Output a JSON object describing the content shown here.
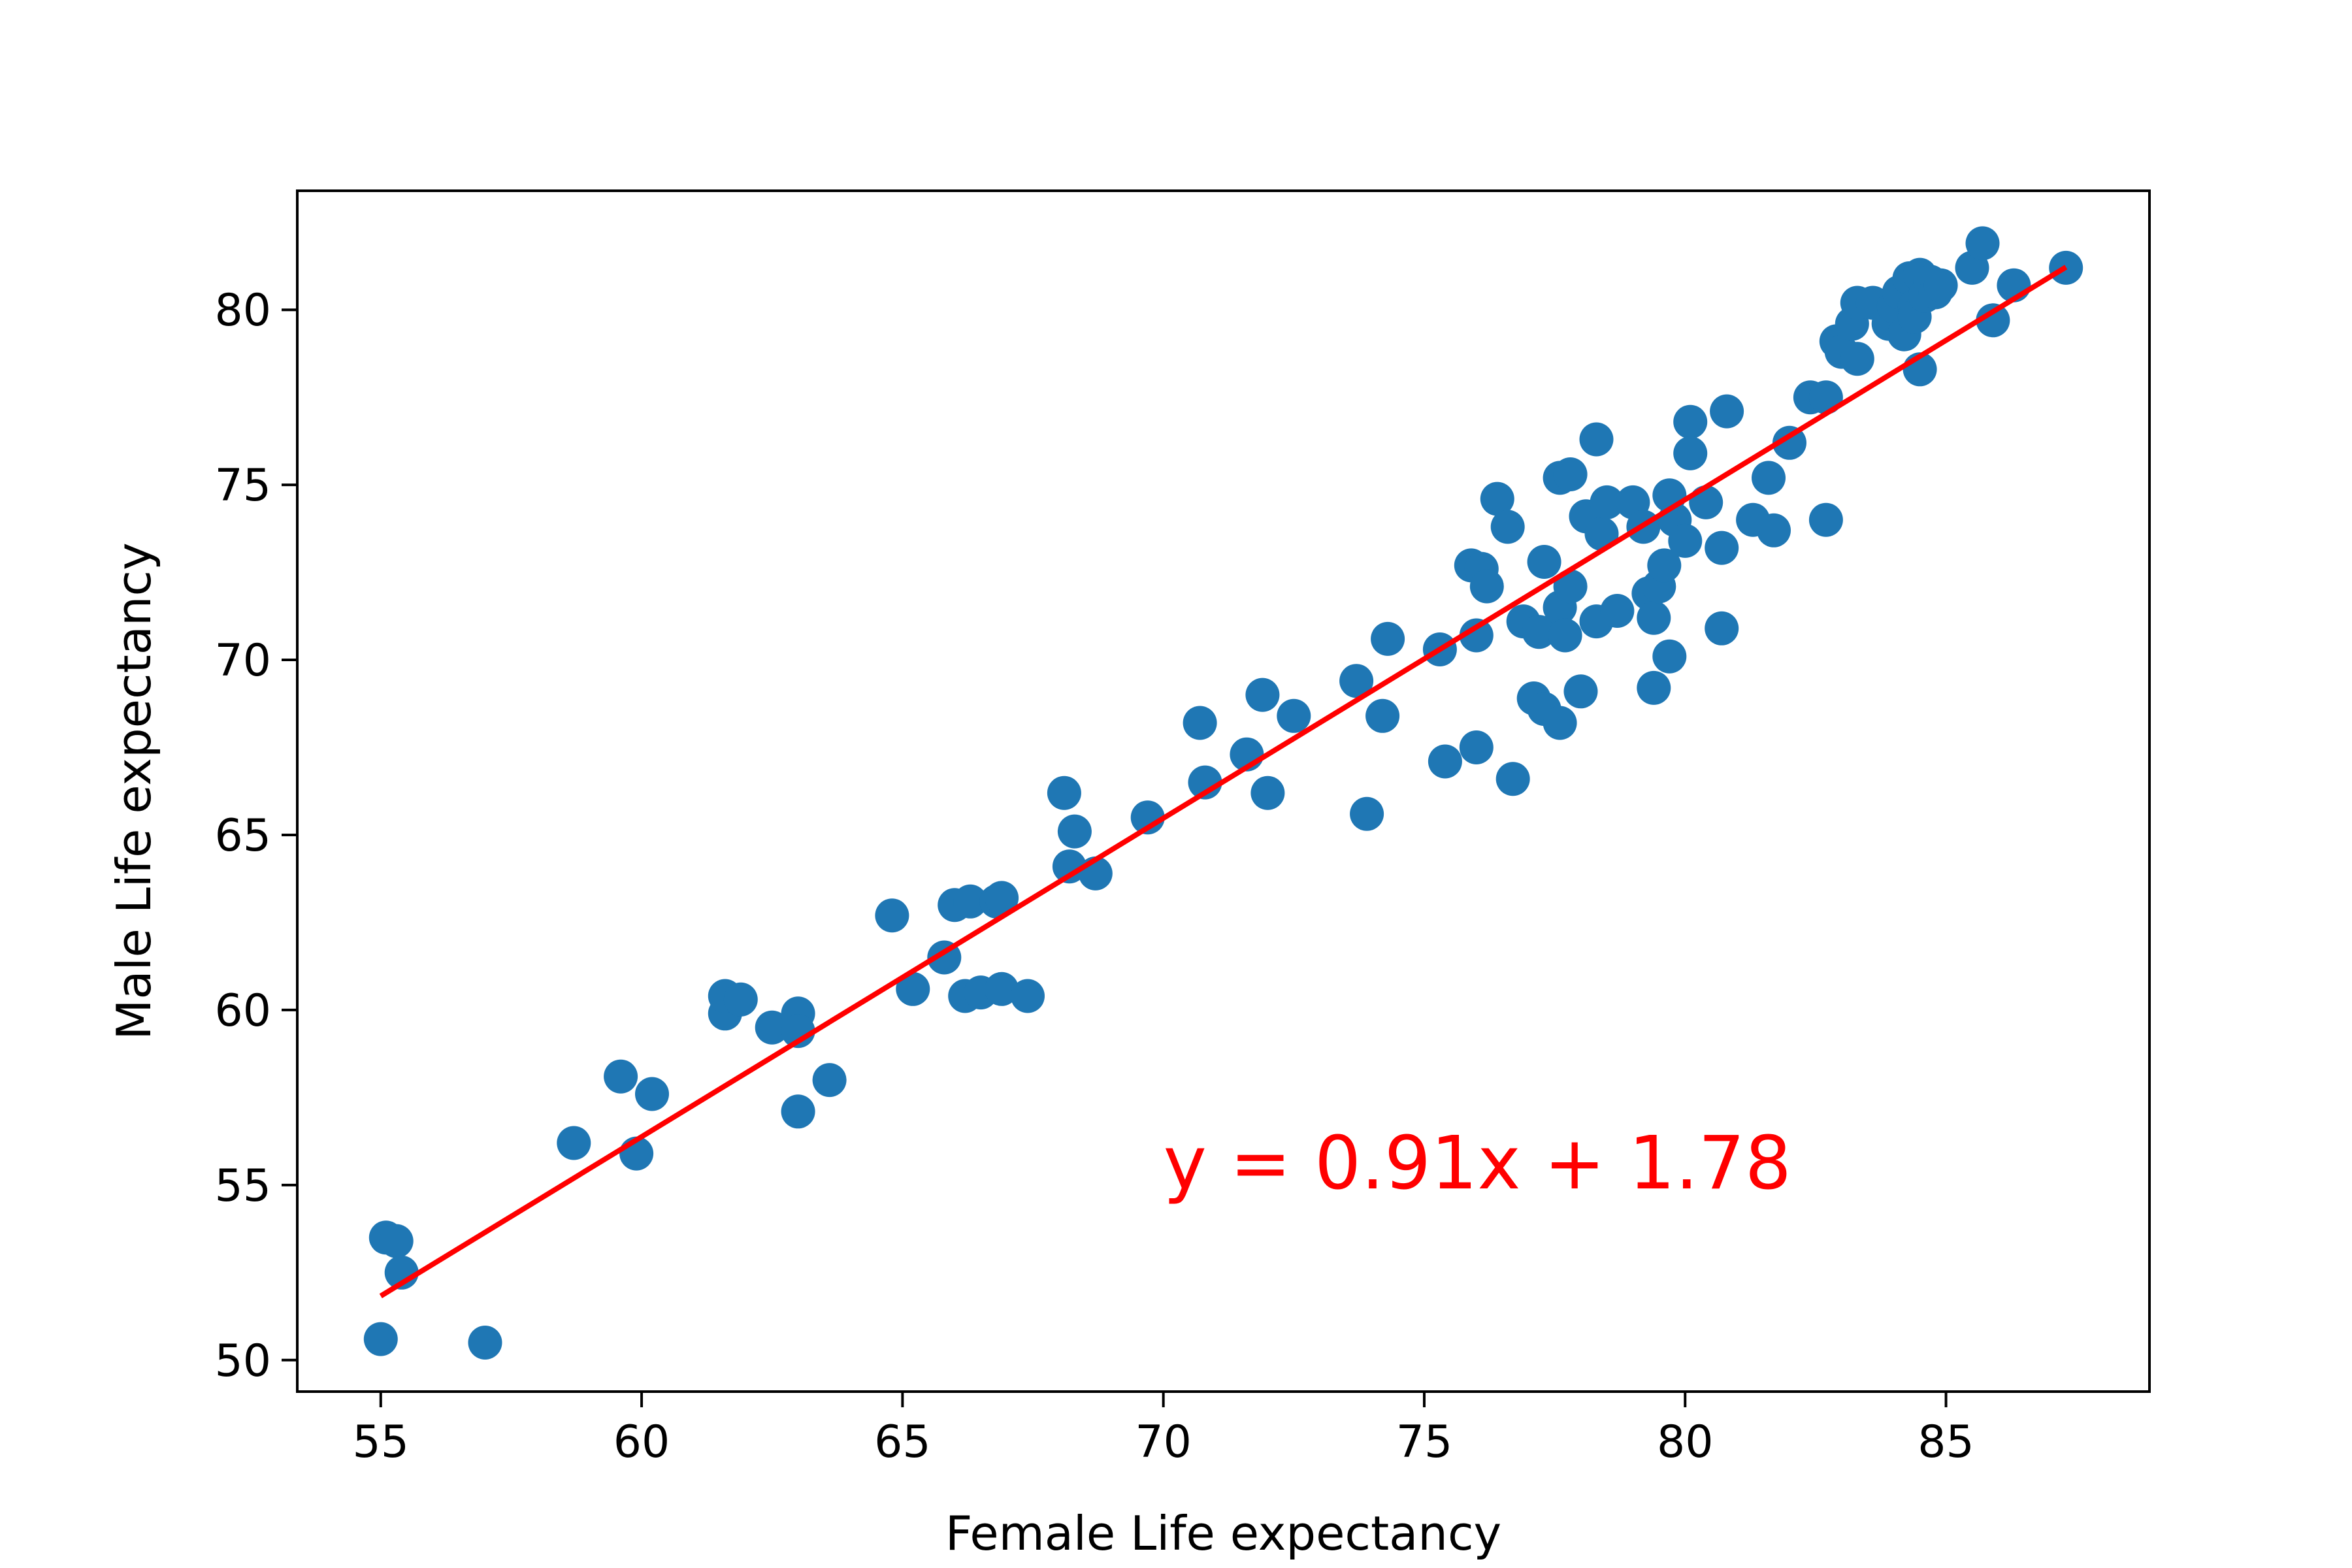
{
  "chart_data": {
    "type": "scatter",
    "xlabel": "Female Life expectancy",
    "ylabel": "Male Life expectancy",
    "xlim": [
      53.4,
      88.9
    ],
    "ylim": [
      49.1,
      83.4
    ],
    "xticks": [
      55,
      60,
      65,
      70,
      75,
      80,
      85
    ],
    "yticks": [
      50,
      55,
      60,
      65,
      70,
      75,
      80
    ],
    "grid": false,
    "point_color": "#1f77b4",
    "points": [
      [
        55.0,
        50.6
      ],
      [
        57.0,
        50.5
      ],
      [
        55.1,
        53.5
      ],
      [
        55.3,
        53.4
      ],
      [
        55.4,
        52.5
      ],
      [
        58.7,
        56.2
      ],
      [
        59.6,
        58.1
      ],
      [
        59.9,
        55.9
      ],
      [
        60.2,
        57.6
      ],
      [
        61.6,
        59.9
      ],
      [
        61.6,
        60.4
      ],
      [
        61.9,
        60.3
      ],
      [
        62.5,
        59.5
      ],
      [
        63.0,
        59.9
      ],
      [
        63.0,
        59.4
      ],
      [
        63.0,
        57.1
      ],
      [
        63.6,
        58.0
      ],
      [
        64.8,
        62.7
      ],
      [
        65.2,
        60.6
      ],
      [
        65.8,
        61.5
      ],
      [
        66.0,
        63.0
      ],
      [
        66.3,
        63.1
      ],
      [
        66.2,
        60.4
      ],
      [
        66.5,
        60.5
      ],
      [
        66.8,
        63.1
      ],
      [
        66.9,
        63.2
      ],
      [
        66.9,
        60.6
      ],
      [
        67.4,
        60.4
      ],
      [
        68.1,
        66.2
      ],
      [
        68.3,
        65.1
      ],
      [
        68.2,
        64.1
      ],
      [
        68.7,
        63.9
      ],
      [
        69.7,
        65.5
      ],
      [
        70.7,
        68.2
      ],
      [
        70.8,
        66.5
      ],
      [
        71.6,
        67.3
      ],
      [
        71.9,
        69.0
      ],
      [
        72.0,
        66.2
      ],
      [
        72.5,
        68.4
      ],
      [
        73.7,
        69.4
      ],
      [
        73.9,
        65.6
      ],
      [
        74.2,
        68.4
      ],
      [
        74.3,
        70.6
      ],
      [
        75.3,
        70.3
      ],
      [
        75.4,
        67.1
      ],
      [
        75.9,
        72.7
      ],
      [
        76.1,
        72.6
      ],
      [
        76.2,
        72.1
      ],
      [
        76.0,
        70.7
      ],
      [
        76.0,
        67.5
      ],
      [
        76.4,
        74.6
      ],
      [
        76.6,
        73.8
      ],
      [
        76.7,
        66.6
      ],
      [
        76.9,
        71.1
      ],
      [
        77.2,
        70.8
      ],
      [
        77.1,
        68.9
      ],
      [
        77.3,
        68.6
      ],
      [
        77.6,
        68.2
      ],
      [
        77.3,
        72.8
      ],
      [
        77.6,
        71.5
      ],
      [
        77.7,
        70.7
      ],
      [
        77.8,
        72.1
      ],
      [
        78.0,
        69.1
      ],
      [
        77.6,
        75.2
      ],
      [
        77.8,
        75.3
      ],
      [
        78.1,
        74.1
      ],
      [
        78.3,
        76.3
      ],
      [
        78.3,
        71.1
      ],
      [
        78.4,
        73.6
      ],
      [
        78.5,
        74.5
      ],
      [
        78.7,
        71.4
      ],
      [
        79.0,
        74.5
      ],
      [
        79.2,
        73.8
      ],
      [
        79.3,
        71.9
      ],
      [
        79.4,
        71.2
      ],
      [
        79.4,
        69.2
      ],
      [
        79.5,
        72.1
      ],
      [
        79.6,
        72.7
      ],
      [
        79.7,
        74.7
      ],
      [
        79.8,
        74.0
      ],
      [
        79.7,
        70.1
      ],
      [
        80.0,
        73.4
      ],
      [
        80.1,
        76.8
      ],
      [
        80.1,
        75.9
      ],
      [
        80.4,
        74.5
      ],
      [
        80.7,
        73.2
      ],
      [
        80.8,
        77.1
      ],
      [
        80.7,
        70.9
      ],
      [
        81.3,
        74.0
      ],
      [
        81.7,
        73.7
      ],
      [
        81.6,
        75.2
      ],
      [
        82.0,
        76.2
      ],
      [
        82.4,
        77.5
      ],
      [
        82.7,
        77.5
      ],
      [
        82.7,
        74.0
      ],
      [
        82.9,
        79.1
      ],
      [
        83.0,
        78.8
      ],
      [
        83.2,
        79.6
      ],
      [
        83.3,
        80.2
      ],
      [
        83.3,
        78.6
      ],
      [
        83.6,
        80.2
      ],
      [
        83.9,
        79.6
      ],
      [
        84.0,
        80.1
      ],
      [
        84.1,
        80.5
      ],
      [
        84.2,
        79.3
      ],
      [
        84.3,
        80.9
      ],
      [
        84.4,
        80.1
      ],
      [
        84.5,
        81.0
      ],
      [
        84.4,
        79.8
      ],
      [
        84.5,
        78.3
      ],
      [
        84.6,
        80.4
      ],
      [
        84.7,
        80.8
      ],
      [
        84.8,
        80.5
      ],
      [
        84.9,
        80.7
      ],
      [
        85.5,
        81.2
      ],
      [
        85.7,
        81.9
      ],
      [
        85.9,
        79.7
      ],
      [
        86.3,
        80.7
      ],
      [
        87.3,
        81.2
      ]
    ],
    "fit_line": {
      "x": [
        55.0,
        87.3
      ],
      "y": [
        51.83,
        81.22
      ],
      "color": "#ff0000",
      "equation": "y = 0.91x + 1.78",
      "label_x": 70.0,
      "label_y": 54.9
    }
  }
}
